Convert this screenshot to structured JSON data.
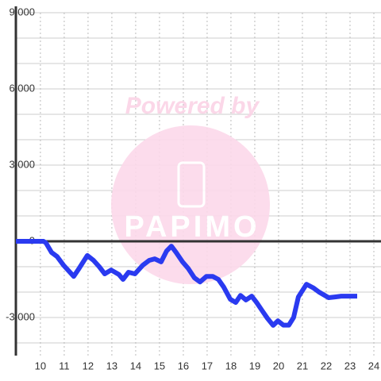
{
  "chart_data": {
    "type": "line",
    "watermark_text": "Powered by",
    "watermark_logo": "PAPIMO",
    "xlim": [
      8.97,
      24.3
    ],
    "ylim": [
      -4500,
      9000
    ],
    "xticks": [
      10,
      11,
      12,
      13,
      14,
      15,
      16,
      17,
      18,
      19,
      20,
      21,
      22,
      23,
      24
    ],
    "yticks": [
      {
        "value": -3000,
        "label": "-3,000"
      },
      0,
      {
        "value": 3000,
        "label": "3,000"
      },
      {
        "value": 6000,
        "label": "6,000"
      },
      {
        "value": 9000,
        "label": "9,000"
      }
    ],
    "grid": true,
    "series": [
      {
        "color": "#2a3af0",
        "x": [
          8.97,
          10.13,
          10.23,
          10.47,
          10.7,
          10.97,
          11.4,
          11.63,
          11.97,
          12.23,
          12.47,
          12.7,
          12.97,
          13.3,
          13.47,
          13.7,
          13.97,
          14.3,
          14.57,
          14.8,
          15.07,
          15.3,
          15.5,
          15.7,
          15.97,
          16.2,
          16.47,
          16.7,
          16.97,
          17.23,
          17.47,
          17.7,
          17.97,
          18.2,
          18.4,
          18.63,
          18.87,
          19.07,
          19.3,
          19.53,
          19.77,
          19.97,
          20.2,
          20.43,
          20.63,
          20.83,
          21.17,
          21.47,
          21.7,
          22.1,
          22.37,
          22.63,
          23.3
        ],
        "values": [
          0,
          0,
          -60,
          -440,
          -600,
          -940,
          -1380,
          -1060,
          -560,
          -750,
          -1000,
          -1280,
          -1130,
          -1310,
          -1500,
          -1220,
          -1280,
          -940,
          -750,
          -690,
          -810,
          -380,
          -190,
          -440,
          -810,
          -1060,
          -1440,
          -1600,
          -1380,
          -1380,
          -1500,
          -1810,
          -2280,
          -2410,
          -2130,
          -2310,
          -2160,
          -2400,
          -2720,
          -3030,
          -3310,
          -3130,
          -3300,
          -3300,
          -3000,
          -2190,
          -1690,
          -1840,
          -2000,
          -2220,
          -2190,
          -2160,
          -2160
        ]
      }
    ]
  }
}
